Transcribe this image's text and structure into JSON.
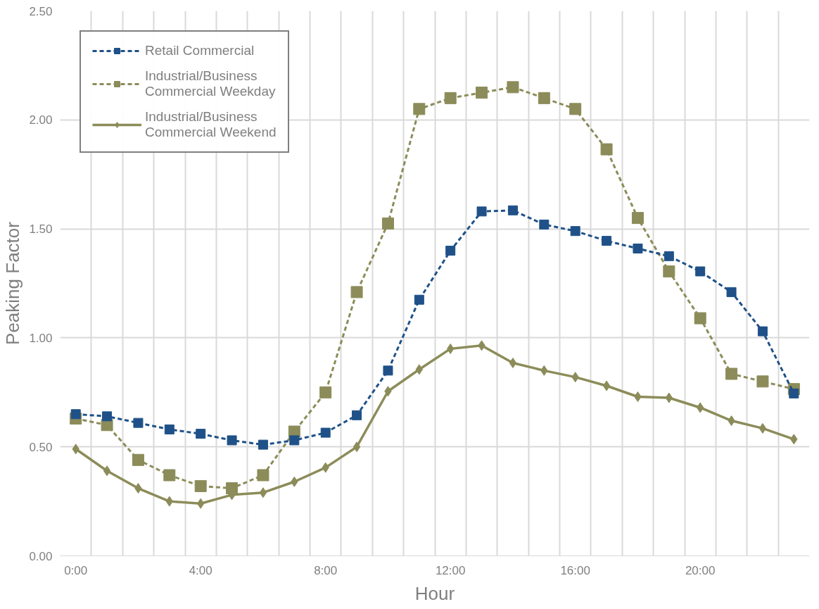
{
  "chart_data": {
    "type": "line",
    "xlabel": "Hour",
    "ylabel": "Peaking Factor",
    "categories": [
      "0:00",
      null,
      null,
      null,
      "4:00",
      null,
      null,
      null,
      "8:00",
      null,
      null,
      null,
      "12:00",
      null,
      null,
      null,
      "16:00",
      null,
      null,
      null,
      "20:00",
      null,
      null,
      null
    ],
    "series": [
      {
        "name": "Retail Commercial",
        "color": "#1f5188",
        "marker": "square",
        "line_style": "dashed",
        "values": [
          0.65,
          0.64,
          0.61,
          0.58,
          0.56,
          0.53,
          0.51,
          0.53,
          0.565,
          0.645,
          0.85,
          1.175,
          1.4,
          1.58,
          1.585,
          1.52,
          1.49,
          1.445,
          1.41,
          1.375,
          1.305,
          1.21,
          1.03,
          0.745
        ]
      },
      {
        "name": "Industrial/Business\nCommercial Weekday",
        "color": "#8c8c5a",
        "marker": "square",
        "line_style": "dashed",
        "values": [
          0.63,
          0.6,
          0.44,
          0.37,
          0.32,
          0.31,
          0.37,
          0.57,
          0.75,
          1.21,
          1.525,
          2.05,
          2.1,
          2.125,
          2.15,
          2.1,
          2.05,
          1.865,
          1.55,
          1.305,
          1.09,
          0.835,
          0.8,
          0.765
        ]
      },
      {
        "name": "Industrial/Business\nCommercial Weekend",
        "color": "#8c8c5a",
        "marker": "diamond",
        "line_style": "solid",
        "values": [
          0.49,
          0.39,
          0.31,
          0.25,
          0.24,
          0.28,
          0.29,
          0.34,
          0.405,
          0.5,
          0.755,
          0.855,
          0.95,
          0.965,
          0.885,
          0.85,
          0.82,
          0.78,
          0.73,
          0.725,
          0.68,
          0.62,
          0.585,
          0.535
        ]
      }
    ],
    "ylim": [
      0,
      2.5
    ],
    "yticks": [
      {
        "value": 0,
        "label": "0.00"
      },
      {
        "value": 0.5,
        "label": "0.50"
      },
      {
        "value": 1,
        "label": "1.00"
      },
      {
        "value": 1.5,
        "label": "1.50"
      },
      {
        "value": 2,
        "label": "2.00"
      },
      {
        "value": 2.5,
        "label": "2.50"
      }
    ],
    "grid": true,
    "legend": "top left"
  }
}
